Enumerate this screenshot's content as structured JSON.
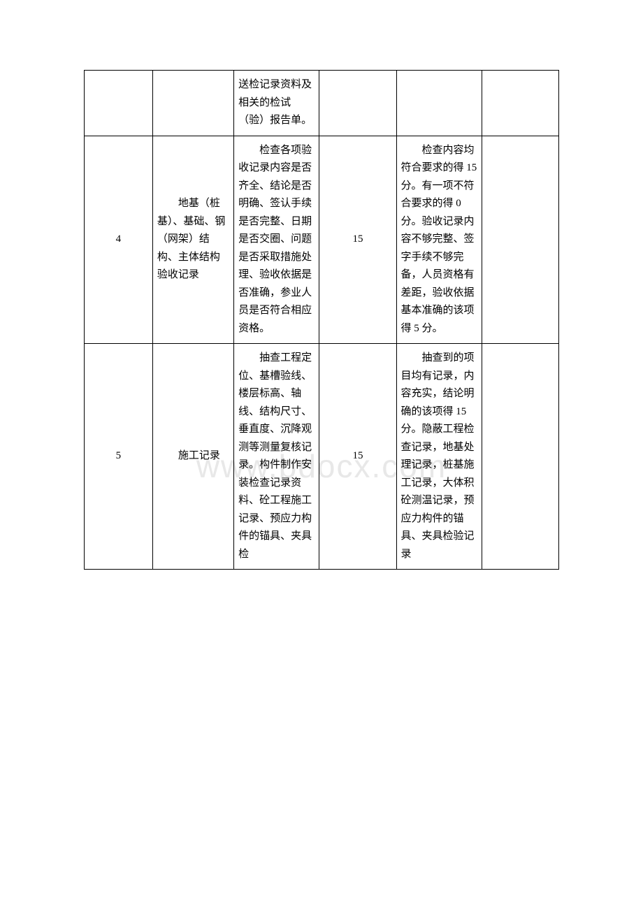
{
  "watermark": "www.bdocx.com",
  "table": {
    "rows": [
      {
        "num": "",
        "name": "",
        "desc": "送检记录资料及相关的检试（验）报告单。",
        "score": "",
        "criteria": "",
        "blank": ""
      },
      {
        "num": "4",
        "name": "　　地基（桩基）、基础、钢（网架）结构、主体结构验收记录",
        "desc": "　　检查各项验收记录内容是否齐全、结论是否明确、签认手续是否完整、日期是否交圈、问题是否采取措施处理、验收依据是否准确，参业人员是否符合相应资格。",
        "score": "15",
        "criteria": "　　检查内容均符合要求的得 15 分。有一项不符合要求的得 0 分。验收记录内容不够完整、签字手续不够完备，人员资格有差距，验收依据基本准确的该项得 5 分。",
        "blank": ""
      },
      {
        "num": "5",
        "name": "　　施工记录",
        "desc": "　　抽查工程定位、基槽验线、楼层标高、轴线、结构尺寸、垂直度、沉降观测等测量复核记录。构件制作安装检查记录资料、砼工程施工记录、预应力构件的锚具、夹具检",
        "score": "15",
        "criteria": "　　抽查到的项目均有记录，内容充实，结论明确的该项得 15 分。隐蔽工程检查记录，地基处理记录，桩基施工记录，大体积砼测温记录，预应力构件的锚具、夹具检验记录",
        "blank": ""
      }
    ],
    "columns": {
      "widths": [
        80,
        95,
        100,
        90,
        100,
        90
      ],
      "border_color": "#000000",
      "font_size": 15,
      "line_height": 1.7,
      "text_color": "#000000",
      "background_color": "#ffffff"
    }
  }
}
